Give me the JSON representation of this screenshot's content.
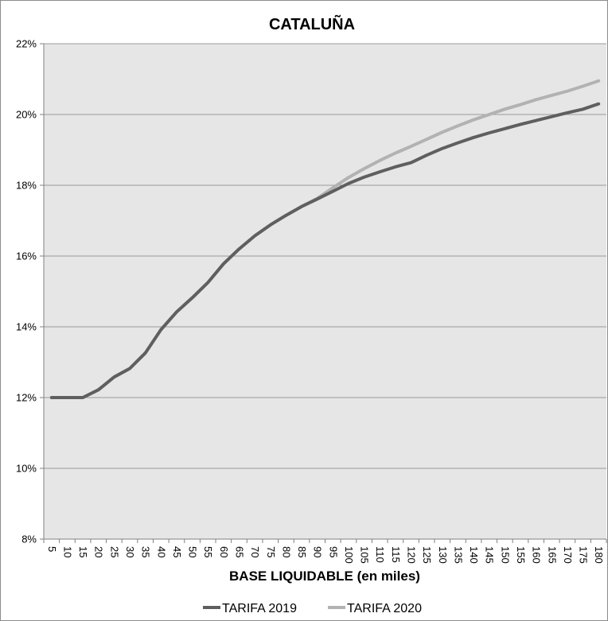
{
  "chart_data": {
    "type": "line",
    "title": "CATALUÑA",
    "xlabel": "BASE LIQUIDABLE (en miles)",
    "ylabel": "",
    "x": [
      5,
      10,
      15,
      20,
      25,
      30,
      35,
      40,
      45,
      50,
      55,
      60,
      65,
      70,
      75,
      80,
      85,
      90,
      95,
      100,
      105,
      110,
      115,
      120,
      125,
      130,
      135,
      140,
      145,
      150,
      155,
      160,
      165,
      170,
      175,
      180
    ],
    "ylim": [
      8,
      22
    ],
    "yticks": [
      "8%",
      "10%",
      "12%",
      "14%",
      "16%",
      "18%",
      "20%",
      "22%"
    ],
    "grid": true,
    "legend_position": "bottom",
    "series": [
      {
        "name": "TARIFA 2019",
        "color": "#5f5f5f",
        "values": [
          12.0,
          12.0,
          12.0,
          12.22,
          12.58,
          12.82,
          13.26,
          13.92,
          14.42,
          14.82,
          15.25,
          15.78,
          16.2,
          16.57,
          16.88,
          17.15,
          17.4,
          17.61,
          17.83,
          18.05,
          18.23,
          18.38,
          18.52,
          18.64,
          18.85,
          19.04,
          19.2,
          19.35,
          19.48,
          19.6,
          19.72,
          19.83,
          19.94,
          20.05,
          20.15,
          20.3
        ]
      },
      {
        "name": "TARIFA 2020",
        "color": "#b2b2b2",
        "values": [
          12.0,
          12.0,
          12.0,
          12.22,
          12.58,
          12.82,
          13.26,
          13.92,
          14.42,
          14.82,
          15.25,
          15.78,
          16.2,
          16.57,
          16.88,
          17.15,
          17.4,
          17.63,
          17.93,
          18.22,
          18.47,
          18.7,
          18.91,
          19.1,
          19.3,
          19.5,
          19.68,
          19.85,
          20.0,
          20.15,
          20.28,
          20.42,
          20.54,
          20.66,
          20.8,
          20.95
        ]
      }
    ]
  }
}
